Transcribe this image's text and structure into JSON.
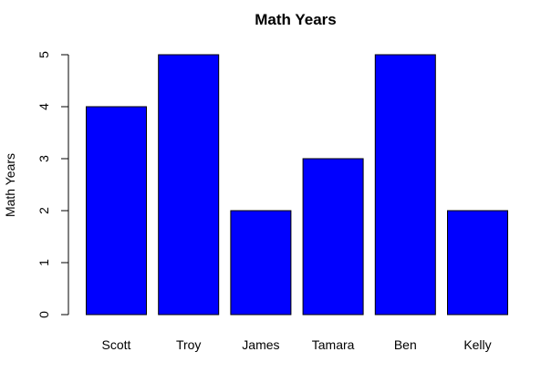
{
  "chart_data": {
    "type": "bar",
    "title": "Math Years",
    "xlabel": "",
    "ylabel": "Math Years",
    "categories": [
      "Scott",
      "Troy",
      "James",
      "Tamara",
      "Ben",
      "Kelly"
    ],
    "values": [
      4,
      5,
      2,
      3,
      5,
      2
    ],
    "ylim": [
      0,
      5
    ],
    "yticks": [
      "0",
      "1",
      "2",
      "3",
      "4",
      "5"
    ],
    "grid": false,
    "legend": "none",
    "colors": {
      "bar_fill": "#0000ff",
      "bar_stroke": "#000000"
    }
  }
}
